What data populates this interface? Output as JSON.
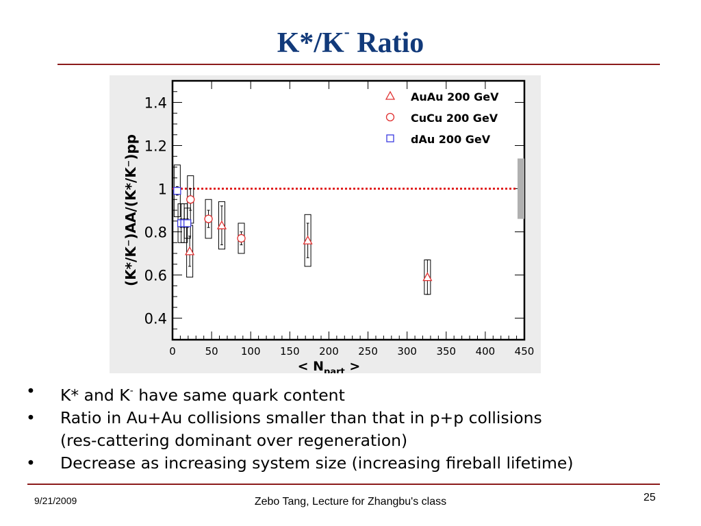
{
  "slide": {
    "title_main": "K*/K",
    "title_sup": "-",
    "title_rest": " Ratio",
    "bullets": [
      {
        "pre": "K* and K",
        "sup": "-",
        "post": " have same quark content"
      },
      {
        "pre": "Ratio in Au+Au collisions smaller than that in p+p collisions",
        "sup": "",
        "post": ""
      },
      {
        "pre": "(res-cattering dominant over regeneration)",
        "sup": "",
        "post": ""
      },
      {
        "pre": "Decrease as increasing system size (increasing fireball lifetime)",
        "sup": "",
        "post": ""
      }
    ],
    "bullet_symbol": "•"
  },
  "footer": {
    "date": "9/21/2009",
    "center": "Zebo Tang, Lecture for Zhangbu's class",
    "page": "25"
  },
  "chart_data": {
    "type": "scatter",
    "x_ticks": [
      "0",
      "50",
      "100",
      "150",
      "200",
      "250",
      "300",
      "350",
      "400",
      "450"
    ],
    "y_ticks": [
      "0.4",
      "0.6",
      "0.8",
      "1",
      "1.2",
      "1.4"
    ],
    "xlim": [
      0,
      450
    ],
    "ylim": [
      0.3,
      1.5
    ],
    "xlabel": "< N",
    "xlabel_sub": "part",
    "xlabel_end": " >",
    "ylabel": "(K*/K⁻)AA/(K*/K⁻)pp",
    "reference_line": {
      "y": 1.0,
      "style": "dotted",
      "color": "#e02020"
    },
    "pp_uncertainty_band": {
      "x": 450,
      "ymin": 0.86,
      "ymax": 1.14,
      "color": "#b0b0b0"
    },
    "grid": false,
    "legend_position": "top-right",
    "series": [
      {
        "name": "AuAu 200 GeV",
        "marker": "triangle",
        "color": "#e03030",
        "points": [
          {
            "x": 22,
            "y": 0.71,
            "stat": 0.07,
            "sys": 0.12
          },
          {
            "x": 63,
            "y": 0.83,
            "stat": 0.09,
            "sys": 0.11
          },
          {
            "x": 173,
            "y": 0.76,
            "stat": 0.08,
            "sys": 0.12
          },
          {
            "x": 326,
            "y": 0.59,
            "stat": 0.08,
            "sys": 0.08
          }
        ]
      },
      {
        "name": "CuCu 200 GeV",
        "marker": "circle",
        "color": "#e03030",
        "points": [
          {
            "x": 23,
            "y": 0.95,
            "stat": 0.05,
            "sys": 0.11
          },
          {
            "x": 46,
            "y": 0.86,
            "stat": 0.04,
            "sys": 0.09
          },
          {
            "x": 88,
            "y": 0.77,
            "stat": 0.03,
            "sys": 0.07
          }
        ]
      },
      {
        "name": "dAu  200 GeV",
        "marker": "square",
        "color": "#3a3ae0",
        "points": [
          {
            "x": 6,
            "y": 0.99,
            "stat": 0.02,
            "sys": 0.12
          },
          {
            "x": 11,
            "y": 0.84,
            "stat": 0.02,
            "sys": 0.09
          },
          {
            "x": 15,
            "y": 0.84,
            "stat": 0.02,
            "sys": 0.09
          },
          {
            "x": 19,
            "y": 0.84,
            "stat": 0.02,
            "sys": 0.07
          }
        ]
      }
    ]
  }
}
